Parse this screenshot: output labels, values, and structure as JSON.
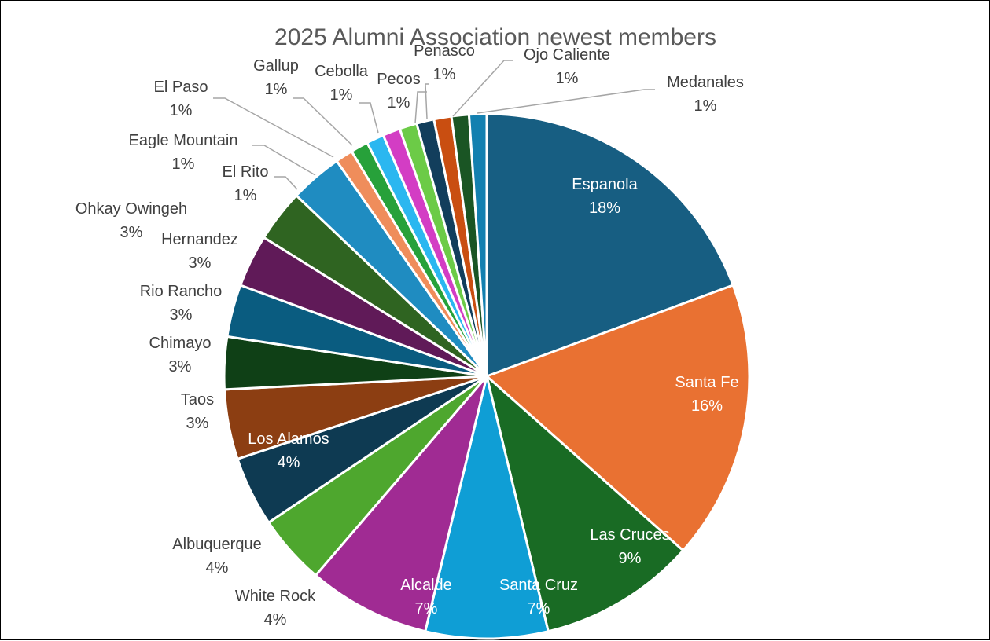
{
  "chart_data": {
    "type": "pie",
    "title": "2025 Alumni Association newest members",
    "slices": [
      {
        "label": "Espanola",
        "value": 18,
        "display": "18%",
        "color": "#175E82"
      },
      {
        "label": "Santa Fe",
        "value": 16,
        "display": "16%",
        "color": "#E97132"
      },
      {
        "label": "Las Cruces",
        "value": 9,
        "display": "9%",
        "color": "#196B24"
      },
      {
        "label": "Santa Cruz",
        "value": 7,
        "display": "7%",
        "color": "#0F9ED5"
      },
      {
        "label": "Alcalde",
        "value": 7,
        "display": "7%",
        "color": "#A02B93"
      },
      {
        "label": "White Rock",
        "value": 4,
        "display": "4%",
        "color": "#4EA72E"
      },
      {
        "label": "Albuquerque",
        "value": 4,
        "display": "4%",
        "color": "#0E3A52"
      },
      {
        "label": "Los Alamos",
        "value": 4,
        "display": "4%",
        "color": "#8C3E12"
      },
      {
        "label": "Taos",
        "value": 3,
        "display": "3%",
        "color": "#0F4016"
      },
      {
        "label": "Chimayo",
        "value": 3,
        "display": "3%",
        "color": "#0A5C80"
      },
      {
        "label": "Rio Rancho",
        "value": 3,
        "display": "3%",
        "color": "#601A58"
      },
      {
        "label": "Hernandez",
        "value": 3,
        "display": "3%",
        "color": "#2F6421"
      },
      {
        "label": "Ohkay Owingeh",
        "value": 3,
        "display": "3%",
        "color": "#1F8CC1"
      },
      {
        "label": "El Rito",
        "value": 1,
        "display": "1%",
        "color": "#EF8D5B"
      },
      {
        "label": "Eagle Mountain",
        "value": 1,
        "display": "1%",
        "color": "#27A13A"
      },
      {
        "label": "El Paso",
        "value": 1,
        "display": "1%",
        "color": "#2BB7F0"
      },
      {
        "label": "Gallup",
        "value": 1,
        "display": "1%",
        "color": "#D33DC4"
      },
      {
        "label": "Cebolla",
        "value": 1,
        "display": "1%",
        "color": "#6CCB47"
      },
      {
        "label": "Pecos",
        "value": 1,
        "display": "1%",
        "color": "#123E5C"
      },
      {
        "label": "Penasco",
        "value": 1,
        "display": "1%",
        "color": "#C94E11"
      },
      {
        "label": "Ojo Caliente",
        "value": 1,
        "display": "1%",
        "color": "#1A5524"
      },
      {
        "label": "Medanales",
        "value": 1,
        "display": "1%",
        "color": "#1380B0"
      }
    ]
  }
}
